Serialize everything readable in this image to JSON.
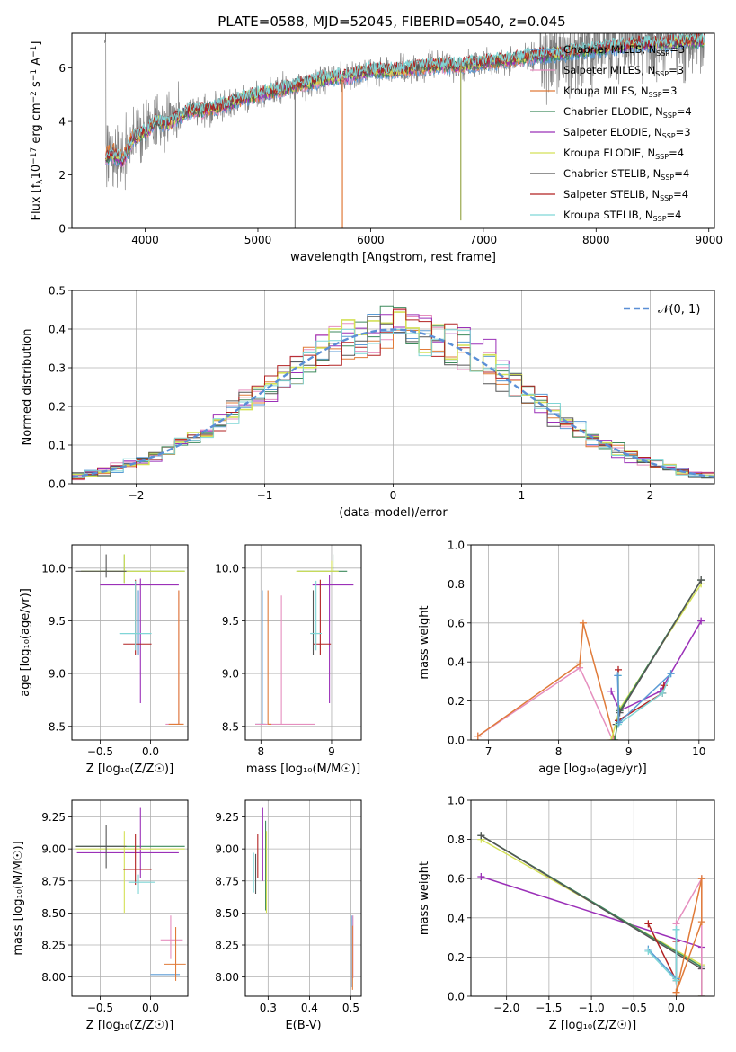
{
  "figure": {
    "title": "PLATE=0588, MJD=52045, FIBERID=0540, z=0.045"
  },
  "series_styles": [
    {
      "key": "chabrier_miles",
      "color": "#5b9bd5",
      "legend_name": "Chabrier MILES, N",
      "legend_sub": "SSP",
      "legend_tail": "=3"
    },
    {
      "key": "salpeter_miles",
      "color": "#e68fbf",
      "legend_name": "Salpeter MILES, N",
      "legend_sub": "SSP",
      "legend_tail": "=3"
    },
    {
      "key": "kroupa_miles",
      "color": "#e07b39",
      "legend_name": "Kroupa MILES, N",
      "legend_sub": "SSP",
      "legend_tail": "=3"
    },
    {
      "key": "chabrier_elodie",
      "color": "#3d8a5c",
      "legend_name": "Chabrier ELODIE, N",
      "legend_sub": "SSP",
      "legend_tail": "=4"
    },
    {
      "key": "salpeter_elodie",
      "color": "#9b30b8",
      "legend_name": "Salpeter ELODIE, N",
      "legend_sub": "SSP",
      "legend_tail": "=3"
    },
    {
      "key": "kroupa_elodie",
      "color": "#d4e157",
      "legend_name": "Kroupa ELODIE, N",
      "legend_sub": "SSP",
      "legend_tail": "=4"
    },
    {
      "key": "chabrier_stelib",
      "color": "#555555",
      "legend_name": "Chabrier STELIB, N",
      "legend_sub": "SSP",
      "legend_tail": "=4"
    },
    {
      "key": "salpeter_stelib",
      "color": "#b22222",
      "legend_name": "Salpeter STELIB, N",
      "legend_sub": "SSP",
      "legend_tail": "=4"
    },
    {
      "key": "kroupa_stelib",
      "color": "#7fd6d6",
      "legend_name": "Kroupa STELIB, N",
      "legend_sub": "SSP",
      "legend_tail": "=4"
    }
  ],
  "chart_data": [
    {
      "id": "spectrum",
      "type": "line",
      "xlabel": "wavelength [Angstrom, rest frame]",
      "ylabel_main": "Flux [f",
      "ylabel_sub": "λ",
      "ylabel_mid": "10",
      "ylabel_sup1": "−17",
      "ylabel_mid2": " erg cm",
      "ylabel_sup2": "−2",
      "ylabel_mid3": " s",
      "ylabel_sup3": "−1",
      "ylabel_mid4": " A",
      "ylabel_sup4": "−1",
      "ylabel_end": "]",
      "xlim": [
        3350,
        9050
      ],
      "ylim": [
        0,
        7.3
      ],
      "xticks": [
        4000,
        5000,
        6000,
        7000,
        8000,
        9000
      ],
      "yticks": [
        0,
        2,
        4,
        6
      ],
      "grid": false,
      "legend_position": "right",
      "data_color": "#808080",
      "model_trend": {
        "x": [
          3650,
          3700,
          3800,
          3900,
          4000,
          4100,
          4200,
          4300,
          4400,
          4500,
          4700,
          4900,
          5000,
          5200,
          5400,
          5600,
          5800,
          6000,
          6200,
          6400,
          6600,
          6800,
          7000,
          7200,
          7400,
          7600,
          7800,
          8000,
          8200,
          8400,
          8600,
          8800,
          8950
        ],
        "y": [
          2.6,
          2.8,
          2.5,
          3.4,
          3.6,
          4.0,
          3.9,
          4.2,
          4.4,
          4.4,
          4.6,
          4.9,
          5.0,
          5.2,
          5.4,
          5.6,
          5.7,
          5.9,
          5.9,
          6.0,
          6.1,
          6.1,
          6.2,
          6.3,
          6.4,
          6.5,
          6.6,
          6.7,
          6.8,
          6.9,
          6.9,
          7.0,
          7.0
        ]
      },
      "absorption_lines": [
        {
          "x": 5750,
          "y": 0,
          "color": "#e07b39"
        },
        {
          "x": 6800,
          "y": 0.3,
          "color": "#9aa84d"
        },
        {
          "x": 5330,
          "y": 0,
          "color": "#808080"
        }
      ]
    },
    {
      "id": "residuals",
      "type": "histogram",
      "xlabel": "(data-model)/error",
      "ylabel": "Normed distribution",
      "xlim": [
        -2.5,
        2.5
      ],
      "ylim": [
        0,
        0.5
      ],
      "xticks": [
        -2,
        -1,
        0,
        1,
        2
      ],
      "xtick_labels": [
        "−2",
        "−1",
        "0",
        "1",
        "2"
      ],
      "yticks": [
        0.0,
        0.1,
        0.2,
        0.3,
        0.4,
        0.5
      ],
      "ytick_labels": [
        "0.0",
        "0.1",
        "0.2",
        "0.3",
        "0.4",
        "0.5"
      ],
      "grid": true,
      "legend_position": "top-right",
      "gaussian_legend": "𝒩(0, 1)",
      "gaussian_color": "#5b8fd6",
      "bin_width": 0.1
    },
    {
      "id": "age_vs_Z",
      "type": "errorbar",
      "xlabel": "Z [log₁₀(Z/Z☉)]",
      "ylabel": "age  [log₁₀(age/yr)]",
      "xlim": [
        -0.78,
        0.37
      ],
      "ylim": [
        8.37,
        10.22
      ],
      "xticks": [
        -0.5,
        0.0
      ],
      "xtick_labels": [
        "−0.5",
        "0.0"
      ],
      "yticks": [
        8.5,
        9.0,
        9.5,
        10.0
      ],
      "ytick_labels": [
        "8.5",
        "9.0",
        "9.5",
        "10.0"
      ],
      "grid": true,
      "points": [
        {
          "s": 0,
          "x": -0.12,
          "y": 9.38,
          "xerr": [
            0.18,
            0.12
          ],
          "yerr": [
            0.2,
            0.41
          ]
        },
        {
          "s": 1,
          "x": 0.28,
          "y": 8.52,
          "xerr": [
            0.13,
            0.05
          ],
          "yerr": [
            0.0,
            1.27
          ]
        },
        {
          "s": 2,
          "x": 0.28,
          "y": 8.52,
          "xerr": [
            0.1,
            0.05
          ],
          "yerr": [
            0.0,
            1.27
          ]
        },
        {
          "s": 3,
          "x": -0.26,
          "y": 9.97,
          "xerr": [
            0.43,
            0.6
          ],
          "yerr": [
            0.11,
            0.16
          ]
        },
        {
          "s": 4,
          "x": -0.1,
          "y": 9.84,
          "xerr": [
            0.4,
            0.38
          ],
          "yerr": [
            1.12,
            0.06
          ]
        },
        {
          "s": 5,
          "x": -0.26,
          "y": 9.97,
          "xerr": [
            0.43,
            0.6
          ],
          "yerr": [
            0.11,
            0.16
          ]
        },
        {
          "s": 6,
          "x": -0.44,
          "y": 9.97,
          "xerr": [
            0.3,
            0.2
          ],
          "yerr": [
            0.06,
            0.16
          ]
        },
        {
          "s": 7,
          "x": -0.15,
          "y": 9.28,
          "xerr": [
            0.12,
            0.16
          ],
          "yerr": [
            0.1,
            0.61
          ]
        },
        {
          "s": 8,
          "x": -0.15,
          "y": 9.38,
          "xerr": [
            0.16,
            0.16
          ],
          "yerr": [
            0.16,
            0.5
          ]
        }
      ]
    },
    {
      "id": "age_vs_mass",
      "type": "errorbar",
      "xlabel": "mass [log₁₀(M/M☉)]",
      "ylabel": "",
      "xlim": [
        7.78,
        9.42
      ],
      "ylim": [
        8.37,
        10.22
      ],
      "xticks": [
        8,
        9
      ],
      "xtick_labels": [
        "8",
        "9"
      ],
      "yticks": [
        8.5,
        9.0,
        9.5,
        10.0
      ],
      "ytick_labels": [
        "8.5",
        "9.0",
        "9.5",
        "10.0"
      ],
      "grid": true,
      "points": [
        {
          "s": 0,
          "x": 8.02,
          "y": 8.52,
          "xerr": [
            0.1,
            0.05
          ],
          "yerr": [
            0.0,
            1.27
          ]
        },
        {
          "s": 1,
          "x": 8.29,
          "y": 8.52,
          "xerr": [
            0.37,
            0.48
          ],
          "yerr": [
            0.0,
            1.22
          ]
        },
        {
          "s": 2,
          "x": 8.1,
          "y": 8.52,
          "xerr": [
            0.0,
            0.05
          ],
          "yerr": [
            0.0,
            1.27
          ]
        },
        {
          "s": 3,
          "x": 9.02,
          "y": 9.97,
          "xerr": [
            0.5,
            0.2
          ],
          "yerr": [
            0.0,
            0.16
          ]
        },
        {
          "s": 4,
          "x": 8.97,
          "y": 9.84,
          "xerr": [
            0.24,
            0.34
          ],
          "yerr": [
            1.12,
            0.09
          ]
        },
        {
          "s": 5,
          "x": 9.0,
          "y": 9.97,
          "xerr": [
            0.5,
            0.1
          ],
          "yerr": [
            0.0,
            0.1
          ]
        },
        {
          "s": 6,
          "x": 8.74,
          "y": 9.38,
          "xerr": [
            0.04,
            0.1
          ],
          "yerr": [
            0.2,
            0.41
          ]
        },
        {
          "s": 7,
          "x": 8.84,
          "y": 9.28,
          "xerr": [
            0.1,
            0.15
          ],
          "yerr": [
            0.1,
            0.61
          ]
        },
        {
          "s": 8,
          "x": 8.78,
          "y": 9.38,
          "xerr": [
            0.08,
            0.08
          ],
          "yerr": [
            0.16,
            0.5
          ]
        }
      ]
    },
    {
      "id": "weight_vs_age",
      "type": "line",
      "xlabel": "age  [log₁₀(age/yr)]",
      "ylabel": "mass weight",
      "xlim": [
        6.75,
        10.22
      ],
      "ylim": [
        0.0,
        1.0
      ],
      "xticks": [
        7,
        8,
        9,
        10
      ],
      "xtick_labels": [
        "7",
        "8",
        "9",
        "10"
      ],
      "yticks": [
        0.0,
        0.2,
        0.4,
        0.6,
        0.8,
        1.0
      ],
      "ytick_labels": [
        "0.0",
        "0.2",
        "0.4",
        "0.6",
        "0.8",
        "1.0"
      ],
      "grid": true,
      "series": [
        {
          "s": 1,
          "x": [
            6.85,
            8.3,
            8.77,
            8.79,
            8.79,
            8.77
          ],
          "y": [
            0.02,
            0.37,
            0.0,
            0.0,
            0.0,
            0.0
          ]
        },
        {
          "s": 2,
          "x": [
            6.85,
            8.3,
            8.35,
            8.8
          ],
          "y": [
            0.02,
            0.39,
            0.6,
            0.0
          ]
        },
        {
          "s": 4,
          "x": [
            8.75,
            8.87,
            9.45,
            10.03
          ],
          "y": [
            0.25,
            0.15,
            0.25,
            0.61
          ]
        },
        {
          "s": 5,
          "x": [
            8.75,
            8.87,
            10.03
          ],
          "y": [
            0.0,
            0.16,
            0.8
          ]
        },
        {
          "s": 3,
          "x": [
            8.8,
            8.87,
            10.03
          ],
          "y": [
            0.0,
            0.15,
            0.82
          ]
        },
        {
          "s": 6,
          "x": [
            8.82,
            8.87,
            10.03
          ],
          "y": [
            0.08,
            0.14,
            0.82
          ]
        },
        {
          "s": 7,
          "x": [
            8.85,
            8.85,
            9.48,
            9.5
          ],
          "y": [
            0.36,
            0.1,
            0.24,
            0.28
          ]
        },
        {
          "s": 8,
          "x": [
            8.85,
            8.85,
            9.48,
            9.6
          ],
          "y": [
            0.33,
            0.08,
            0.24,
            0.34
          ]
        },
        {
          "s": 0,
          "x": [
            8.84,
            8.86,
            9.6
          ],
          "y": [
            0.33,
            0.09,
            0.34
          ]
        }
      ]
    },
    {
      "id": "mass_vs_Z",
      "type": "errorbar",
      "xlabel": "Z [log₁₀(Z/Z☉)]",
      "ylabel": "mass [log₁₀(M/M☉)]",
      "xlim": [
        -0.78,
        0.37
      ],
      "ylim": [
        7.85,
        9.38
      ],
      "xticks": [
        -0.5,
        0.0
      ],
      "xtick_labels": [
        "−0.5",
        "0.0"
      ],
      "yticks": [
        8.0,
        8.25,
        8.5,
        8.75,
        9.0,
        9.25
      ],
      "ytick_labels": [
        "8.00",
        "8.25",
        "8.50",
        "8.75",
        "9.00",
        "9.25"
      ],
      "grid": true,
      "points": [
        {
          "s": 0,
          "x": 0.1,
          "y": 8.02,
          "xerr": [
            0.1,
            0.19
          ],
          "yerr": [
            0.0,
            0.0
          ]
        },
        {
          "s": 1,
          "x": 0.2,
          "y": 8.29,
          "xerr": [
            0.1,
            0.12
          ],
          "yerr": [
            0.15,
            0.19
          ]
        },
        {
          "s": 2,
          "x": 0.25,
          "y": 8.1,
          "xerr": [
            0.12,
            0.1
          ],
          "yerr": [
            0.13,
            0.29
          ]
        },
        {
          "s": 3,
          "x": -0.26,
          "y": 9.02,
          "xerr": [
            0.48,
            0.6
          ],
          "yerr": [
            0.0,
            0.0
          ]
        },
        {
          "s": 4,
          "x": -0.1,
          "y": 8.97,
          "xerr": [
            0.63,
            0.38
          ],
          "yerr": [
            0.2,
            0.35
          ]
        },
        {
          "s": 5,
          "x": -0.26,
          "y": 9.0,
          "xerr": [
            0.48,
            0.6
          ],
          "yerr": [
            0.5,
            0.14
          ]
        },
        {
          "s": 6,
          "x": -0.44,
          "y": 9.02,
          "xerr": [
            0.3,
            0.2
          ],
          "yerr": [
            0.17,
            0.17
          ]
        },
        {
          "s": 7,
          "x": -0.15,
          "y": 8.84,
          "xerr": [
            0.12,
            0.16
          ],
          "yerr": [
            0.12,
            0.28
          ]
        },
        {
          "s": 8,
          "x": -0.12,
          "y": 8.74,
          "xerr": [
            0.1,
            0.16
          ],
          "yerr": [
            0.09,
            0.06
          ]
        }
      ]
    },
    {
      "id": "mass_vs_ebv",
      "type": "errorbar",
      "xlabel": "E(B-V)",
      "ylabel": "",
      "xlim": [
        0.245,
        0.525
      ],
      "ylim": [
        7.85,
        9.38
      ],
      "xticks": [
        0.3,
        0.4,
        0.5
      ],
      "xtick_labels": [
        "0.3",
        "0.4",
        "0.5"
      ],
      "yticks": [
        8.0,
        8.25,
        8.5,
        8.75,
        9.0,
        9.25
      ],
      "ytick_labels": [
        "8.00",
        "8.25",
        "8.50",
        "8.75",
        "9.00",
        "9.25"
      ],
      "grid": true,
      "points": [
        {
          "s": 0,
          "x": 0.503,
          "y": 8.02,
          "xerr": [
            0.0,
            0.0
          ],
          "yerr": [
            0.1,
            0.46
          ]
        },
        {
          "s": 1,
          "x": 0.505,
          "y": 8.29,
          "xerr": [
            0.0,
            0.0
          ],
          "yerr": [
            0.3,
            0.19
          ]
        },
        {
          "s": 2,
          "x": 0.504,
          "y": 8.1,
          "xerr": [
            0.0,
            0.0
          ],
          "yerr": [
            0.2,
            0.3
          ]
        },
        {
          "s": 3,
          "x": 0.294,
          "y": 9.02,
          "xerr": [
            0.0,
            0.0
          ],
          "yerr": [
            0.5,
            0.2
          ]
        },
        {
          "s": 4,
          "x": 0.287,
          "y": 8.97,
          "xerr": [
            0.0,
            0.0
          ],
          "yerr": [
            0.22,
            0.35
          ]
        },
        {
          "s": 5,
          "x": 0.296,
          "y": 9.0,
          "xerr": [
            0.0,
            0.0
          ],
          "yerr": [
            0.5,
            0.14
          ]
        },
        {
          "s": 6,
          "x": 0.27,
          "y": 8.74,
          "xerr": [
            0.0,
            0.0
          ],
          "yerr": [
            0.09,
            0.22
          ]
        },
        {
          "s": 7,
          "x": 0.275,
          "y": 8.98,
          "xerr": [
            0.0,
            0.0
          ],
          "yerr": [
            0.21,
            0.14
          ]
        },
        {
          "s": 8,
          "x": 0.265,
          "y": 8.78,
          "xerr": [
            0.0,
            0.0
          ],
          "yerr": [
            0.12,
            0.19
          ]
        }
      ]
    },
    {
      "id": "weight_vs_Z",
      "type": "line",
      "xlabel": "Z [log₁₀(Z/Z☉)]",
      "ylabel": "mass weight",
      "xlim": [
        -2.42,
        0.45
      ],
      "ylim": [
        0.0,
        1.0
      ],
      "xticks": [
        -2.0,
        -1.5,
        -1.0,
        -0.5,
        0.0
      ],
      "xtick_labels": [
        "−2.0",
        "−1.5",
        "−1.0",
        "−0.5",
        "0.0"
      ],
      "yticks": [
        0.0,
        0.2,
        0.4,
        0.6,
        0.8,
        1.0
      ],
      "ytick_labels": [
        "0.0",
        "0.2",
        "0.4",
        "0.6",
        "0.8",
        "1.0"
      ],
      "grid": true,
      "series": [
        {
          "s": 4,
          "x": [
            -2.3,
            0.3,
            0.3
          ],
          "y": [
            0.61,
            0.25,
            0.14
          ]
        },
        {
          "s": 5,
          "x": [
            -2.3,
            0.3,
            0.3
          ],
          "y": [
            0.8,
            0.16,
            0.0
          ]
        },
        {
          "s": 3,
          "x": [
            -2.3,
            0.3,
            0.3
          ],
          "y": [
            0.82,
            0.15,
            0.0
          ]
        },
        {
          "s": 6,
          "x": [
            -2.3,
            0.3
          ],
          "y": [
            0.82,
            0.14
          ]
        },
        {
          "s": 1,
          "x": [
            0.0,
            0.3,
            0.3
          ],
          "y": [
            0.37,
            0.6,
            0.0
          ]
        },
        {
          "s": 2,
          "x": [
            0.0,
            0.3,
            0.3,
            0.0
          ],
          "y": [
            0.02,
            0.38,
            0.6,
            0.02
          ]
        },
        {
          "s": 7,
          "x": [
            -0.33,
            0.0,
            0.0
          ],
          "y": [
            0.37,
            0.08,
            0.28
          ]
        },
        {
          "s": 0,
          "x": [
            -0.33,
            0.0,
            0.0
          ],
          "y": [
            0.24,
            0.09,
            0.34
          ]
        },
        {
          "s": 8,
          "x": [
            -0.33,
            0.0,
            0.0
          ],
          "y": [
            0.23,
            0.08,
            0.34
          ]
        }
      ]
    }
  ]
}
